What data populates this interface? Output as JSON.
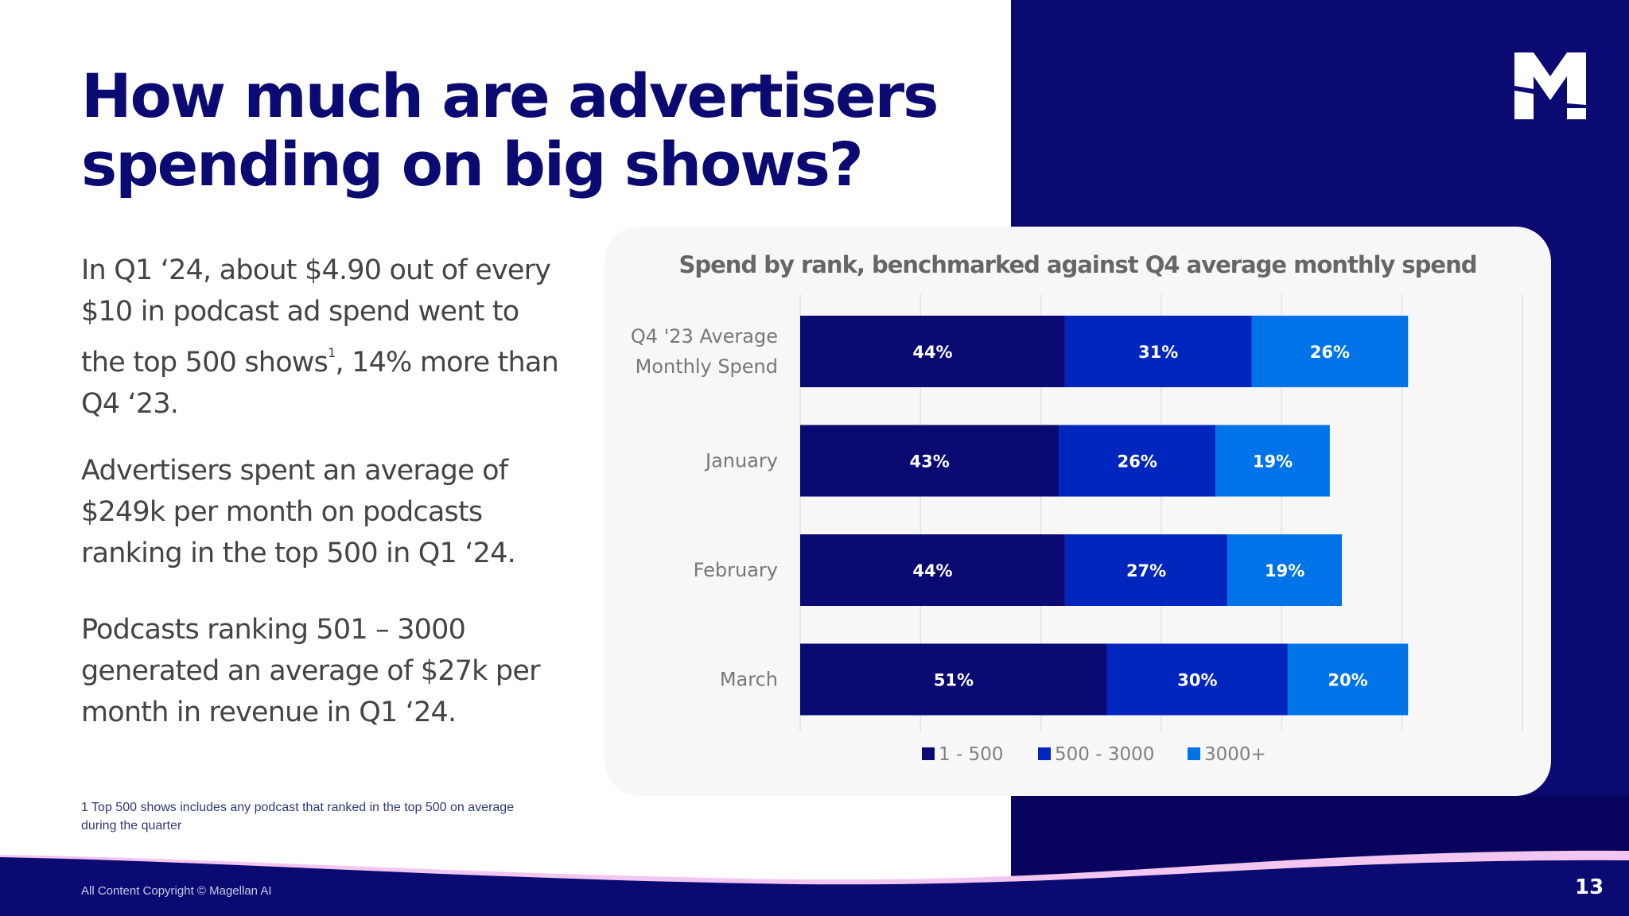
{
  "slide": {
    "title_line1": "How much are advertisers",
    "title_line2": "spending on big shows?",
    "logo": "magellan-m-logo",
    "page_number": "13",
    "copyright": "All Content Copyright © Magellan AI",
    "colors": {
      "brand_navy": "#0b0a72",
      "panel_dark": "#07035e",
      "accent_pink": "#f3c6f0",
      "text_gray": "#444444"
    }
  },
  "body": {
    "p1_line1": "In Q1 ‘24, about $4.90 out of every",
    "p1_line2": "$10 in podcast ad spend went to",
    "p1_line3a": "the top 500 shows",
    "p1_line3_sup": "1",
    "p1_line3b": ", 14% more than",
    "p1_line4": "Q4 ‘23.",
    "p2_line1": "Advertisers spent an average of",
    "p2_line2": "$249k per month on podcasts",
    "p2_line3": "ranking in the top 500 in Q1 ‘24.",
    "p3_line1": "Podcasts ranking 501 – 3000",
    "p3_line2": "generated an average of $27k per",
    "p3_line3": "month in revenue in Q1 ‘24."
  },
  "footnote": {
    "line1": "1 Top 500 shows includes any podcast that ranked in the top 500 on average",
    "line2": "during the quarter"
  },
  "chart_data": {
    "type": "bar",
    "orientation": "horizontal",
    "stacked": true,
    "title": "Spend by rank, benchmarked against Q4 average monthly spend",
    "xlabel": "",
    "ylabel": "",
    "xlim": [
      0,
      120
    ],
    "x_gridlines": [
      0,
      20,
      40,
      60,
      80,
      100,
      120
    ],
    "grid": true,
    "categories": [
      [
        "Q4 '23 Average",
        "Monthly Spend"
      ],
      [
        "January"
      ],
      [
        "February"
      ],
      [
        "March"
      ]
    ],
    "series": [
      {
        "name": "1 - 500",
        "color": "#0b0a72",
        "values": [
          44,
          43,
          44,
          51
        ]
      },
      {
        "name": "500 - 3000",
        "color": "#0026bd",
        "values": [
          31,
          26,
          27,
          30
        ]
      },
      {
        "name": "3000+",
        "color": "#0073e8",
        "values": [
          26,
          19,
          19,
          20
        ]
      }
    ],
    "value_labels_suffix": "%",
    "legend_position": "bottom-center"
  }
}
